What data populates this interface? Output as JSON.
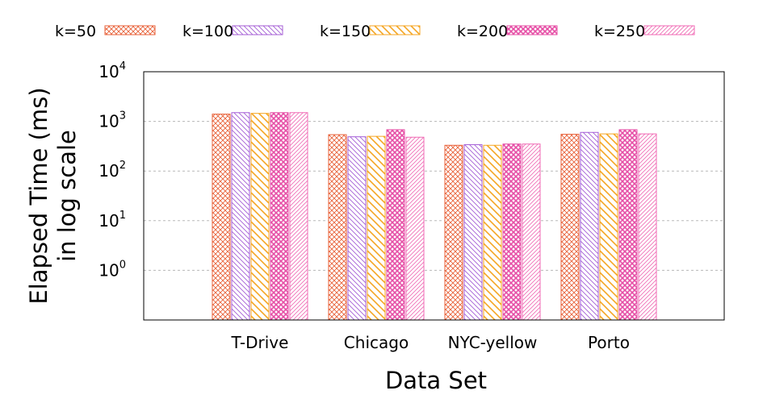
{
  "chart_data": {
    "type": "bar",
    "xlabel": "Data Set",
    "ylabel_line1": "Elapsed Time (ms)",
    "ylabel_line2": "in log scale",
    "y_scale": "log",
    "ylim": [
      0.1,
      10000
    ],
    "y_ticks": [
      {
        "base": "10",
        "exp": "0",
        "value": 1
      },
      {
        "base": "10",
        "exp": "1",
        "value": 10
      },
      {
        "base": "10",
        "exp": "2",
        "value": 100
      },
      {
        "base": "10",
        "exp": "3",
        "value": 1000
      },
      {
        "base": "10",
        "exp": "4",
        "value": 10000
      }
    ],
    "grid": "horizontal dashed",
    "legend_position": "top",
    "categories": [
      "T-Drive",
      "Chicago",
      "NYC-yellow",
      "Porto"
    ],
    "series": [
      {
        "name": "k=50",
        "color": "#e8623a",
        "pattern": "crosshatch",
        "values": [
          1400,
          540,
          330,
          550
        ]
      },
      {
        "name": "k=100",
        "color": "#a45ed6",
        "pattern": "back-diagonal",
        "values": [
          1500,
          490,
          340,
          600
        ]
      },
      {
        "name": "k=150",
        "color": "#f5a623",
        "pattern": "back-diagonal-wide",
        "values": [
          1450,
          500,
          330,
          560
        ]
      },
      {
        "name": "k=200",
        "color": "#e64fa6",
        "pattern": "grid",
        "values": [
          1500,
          680,
          350,
          680
        ]
      },
      {
        "name": "k=250",
        "color": "#f06ab4",
        "pattern": "diagonal-fine",
        "values": [
          1500,
          480,
          350,
          560
        ]
      }
    ]
  }
}
